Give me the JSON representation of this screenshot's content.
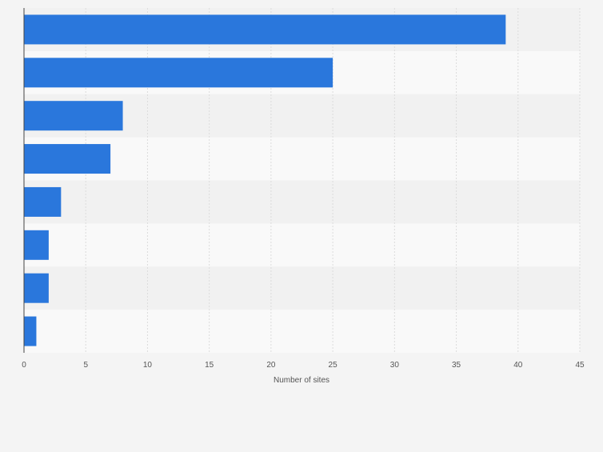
{
  "chart_data": {
    "type": "bar",
    "orientation": "horizontal",
    "categories": [
      "",
      "",
      "",
      "",
      "",
      "",
      "",
      ""
    ],
    "values": [
      39,
      25,
      8,
      7,
      3,
      2,
      2,
      1
    ],
    "title": "",
    "xlabel": "Number of sites",
    "ylabel": "",
    "xlim": [
      0,
      45
    ],
    "xticks": [
      0,
      5,
      10,
      15,
      20,
      25,
      30,
      35,
      40,
      45
    ],
    "xtick_labels": [
      "0",
      "5",
      "10",
      "15",
      "20",
      "25",
      "30",
      "35",
      "40",
      "45"
    ],
    "grid": true,
    "legend": "none"
  },
  "colors": {
    "page_background": "#f4f4f4",
    "band_dark": "#f1f1f1",
    "band_light": "#f9f9f9",
    "bar": "#2a77dc",
    "gridline": "#dcdcdc",
    "axis": "#444444",
    "tick_text": "#555555"
  }
}
